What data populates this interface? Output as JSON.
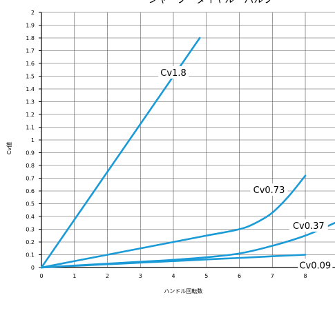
{
  "chart_data": {
    "type": "line",
    "title": "シャープ・ダイヤル・バルブ",
    "xlabel": "ハンドル回転数",
    "ylabel": "Cv値",
    "xlim": [
      0,
      8.9
    ],
    "ylim": [
      0,
      2
    ],
    "xticks": [
      "0",
      "1",
      "2",
      "3",
      "4",
      "5",
      "6",
      "7",
      "8"
    ],
    "yticks": [
      "0",
      "0.1",
      "0.2",
      "0.3",
      "0.4",
      "0.5",
      "0.6",
      "0.7",
      "0.8",
      "0.9",
      "1",
      "1.1",
      "1.2",
      "1.3",
      "1.4",
      "1.5",
      "1.6",
      "1.7",
      "1.8",
      "1.9",
      "2"
    ],
    "grid": true,
    "line_color": "#1a9ad6",
    "series": [
      {
        "name": "Cv1.8",
        "x": [
          0,
          4.8
        ],
        "y": [
          0,
          1.8
        ]
      },
      {
        "name": "Cv0.73",
        "x": [
          0,
          1,
          2,
          3,
          4,
          5,
          6,
          6.5,
          7,
          7.5,
          8
        ],
        "y": [
          0,
          0.05,
          0.1,
          0.15,
          0.2,
          0.25,
          0.3,
          0.35,
          0.43,
          0.56,
          0.72
        ]
      },
      {
        "name": "Cv0.37",
        "x": [
          0,
          1,
          2,
          3,
          4,
          5,
          6,
          7,
          8,
          8.9
        ],
        "y": [
          0,
          0.015,
          0.03,
          0.045,
          0.06,
          0.08,
          0.11,
          0.17,
          0.25,
          0.35
        ]
      },
      {
        "name": "Cv0.09",
        "x": [
          0,
          1,
          2,
          3,
          4,
          5,
          6,
          7,
          8
        ],
        "y": [
          0,
          0.013,
          0.025,
          0.038,
          0.05,
          0.063,
          0.075,
          0.088,
          0.1
        ]
      }
    ]
  }
}
